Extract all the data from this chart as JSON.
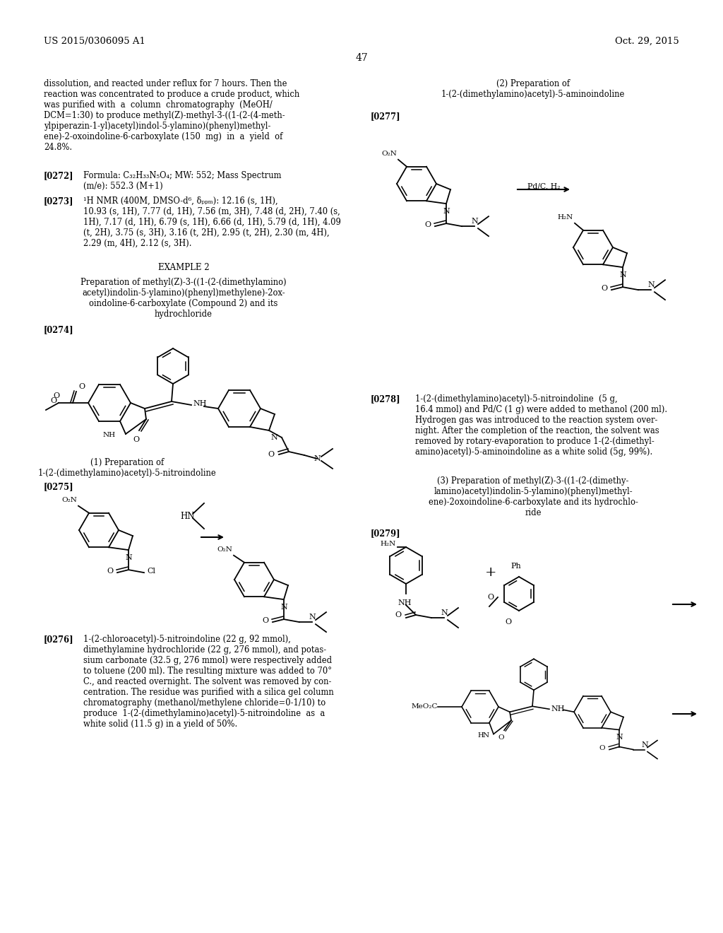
{
  "page_number": "47",
  "patent_number": "US 2015/0306095 A1",
  "patent_date": "Oct. 29, 2015",
  "background_color": "#ffffff"
}
